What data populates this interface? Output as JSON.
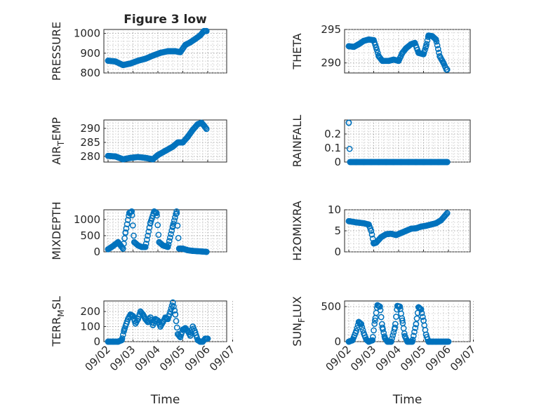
{
  "figure": {
    "title": "Figure 3 low",
    "marker_color": "#0072BD"
  },
  "chart_data": [
    {
      "type": "scatter",
      "title": "Figure 3 low",
      "ylabel": "PRESSURE",
      "xlim": [
        "09/02",
        "09/06"
      ],
      "ylim": [
        800,
        1020
      ],
      "yticks": [
        800,
        900,
        1000
      ],
      "xticks": [
        "09/02",
        "09/03",
        "09/04",
        "09/05",
        "09/06"
      ],
      "xticklabels_shown": false,
      "grid": true,
      "x_start": 0.0,
      "x_end": 3.95,
      "points": [
        [
          0,
          862
        ],
        [
          0.3,
          858
        ],
        [
          0.6,
          840
        ],
        [
          0.9,
          848
        ],
        [
          1.2,
          862
        ],
        [
          1.5,
          872
        ],
        [
          1.8,
          888
        ],
        [
          2.1,
          902
        ],
        [
          2.4,
          910
        ],
        [
          2.7,
          910
        ],
        [
          2.9,
          905
        ],
        [
          3.1,
          942
        ],
        [
          3.3,
          955
        ],
        [
          3.5,
          972
        ],
        [
          3.7,
          990
        ],
        [
          3.85,
          1012
        ],
        [
          3.95,
          1012
        ]
      ]
    },
    {
      "type": "scatter",
      "ylabel": "THETA",
      "xlim": [
        "09/02",
        "09/06"
      ],
      "ylim": [
        288.5,
        295
      ],
      "yticks": [
        290,
        295
      ],
      "xticks": [
        "09/02",
        "09/03",
        "09/04",
        "09/05",
        "09/06"
      ],
      "xticklabels_shown": false,
      "grid": true,
      "x_start": 0.0,
      "x_end": 3.95,
      "points": [
        [
          0,
          292.5
        ],
        [
          0.2,
          292.4
        ],
        [
          0.4,
          292.8
        ],
        [
          0.6,
          293.3
        ],
        [
          0.8,
          293.5
        ],
        [
          1.0,
          293.4
        ],
        [
          1.1,
          292.3
        ],
        [
          1.2,
          291.0
        ],
        [
          1.35,
          290.3
        ],
        [
          1.6,
          290.3
        ],
        [
          1.8,
          290.5
        ],
        [
          2.0,
          290.3
        ],
        [
          2.15,
          291.5
        ],
        [
          2.3,
          292.2
        ],
        [
          2.5,
          292.8
        ],
        [
          2.65,
          293.0
        ],
        [
          2.8,
          291.5
        ],
        [
          3.0,
          291.3
        ],
        [
          3.1,
          292.5
        ],
        [
          3.2,
          294.1
        ],
        [
          3.35,
          294.0
        ],
        [
          3.5,
          293.5
        ],
        [
          3.65,
          291.0
        ],
        [
          3.8,
          290.0
        ],
        [
          3.92,
          289.0
        ]
      ]
    },
    {
      "type": "scatter",
      "ylabel": "AIR_TEMP",
      "ylabel_parts": [
        "AIR",
        "T",
        "EMP"
      ],
      "xlim": [
        "09/02",
        "09/06"
      ],
      "ylim": [
        278,
        293
      ],
      "yticks": [
        280,
        285,
        290
      ],
      "xticks": [
        "09/02",
        "09/03",
        "09/04",
        "09/05",
        "09/06"
      ],
      "xticklabels_shown": false,
      "grid": true,
      "x_start": 0.0,
      "x_end": 3.95,
      "points": [
        [
          0,
          280.2
        ],
        [
          0.3,
          280.0
        ],
        [
          0.6,
          279.0
        ],
        [
          0.9,
          279.5
        ],
        [
          1.2,
          279.8
        ],
        [
          1.5,
          279.5
        ],
        [
          1.8,
          279.0
        ],
        [
          2.0,
          280.5
        ],
        [
          2.3,
          282.0
        ],
        [
          2.6,
          283.5
        ],
        [
          2.8,
          285.0
        ],
        [
          3.0,
          285.0
        ],
        [
          3.2,
          287.0
        ],
        [
          3.4,
          289.5
        ],
        [
          3.6,
          291.5
        ],
        [
          3.75,
          292.0
        ],
        [
          3.85,
          291.0
        ],
        [
          3.95,
          289.8
        ]
      ]
    },
    {
      "type": "scatter",
      "ylabel": "RAINFALL",
      "xlim": [
        "09/02",
        "09/06"
      ],
      "ylim": [
        0,
        0.3
      ],
      "yticks": [
        0,
        0.1,
        0.2
      ],
      "xticks": [
        "09/02",
        "09/03",
        "09/04",
        "09/05",
        "09/06"
      ],
      "xticklabels_shown": false,
      "grid": true,
      "x_start": 0.0,
      "x_end": 3.95,
      "points": [
        [
          0,
          0.28
        ],
        [
          0.05,
          0
        ],
        [
          0.3,
          0
        ],
        [
          0.6,
          0
        ],
        [
          0.9,
          0
        ],
        [
          1.2,
          0
        ],
        [
          1.5,
          0
        ],
        [
          1.8,
          0
        ],
        [
          2.1,
          0
        ],
        [
          2.4,
          0
        ],
        [
          2.7,
          0
        ],
        [
          3.0,
          0
        ],
        [
          3.3,
          0
        ],
        [
          3.6,
          0
        ],
        [
          3.95,
          0
        ]
      ]
    },
    {
      "type": "scatter",
      "ylabel": "MIXDEPTH",
      "xlim": [
        "09/02",
        "09/06"
      ],
      "ylim": [
        0,
        1300
      ],
      "yticks": [
        0,
        500,
        1000
      ],
      "xticks": [
        "09/02",
        "09/03",
        "09/04",
        "09/05",
        "09/06"
      ],
      "xticklabels_shown": false,
      "grid": true,
      "x_start": 0.0,
      "x_end": 3.95,
      "points": [
        [
          0,
          80
        ],
        [
          0.2,
          180
        ],
        [
          0.4,
          300
        ],
        [
          0.5,
          200
        ],
        [
          0.6,
          100
        ],
        [
          0.7,
          600
        ],
        [
          0.85,
          1200
        ],
        [
          0.95,
          1250
        ],
        [
          1.05,
          300
        ],
        [
          1.2,
          200
        ],
        [
          1.35,
          150
        ],
        [
          1.5,
          150
        ],
        [
          1.7,
          900
        ],
        [
          1.85,
          1250
        ],
        [
          1.95,
          1200
        ],
        [
          2.05,
          300
        ],
        [
          2.2,
          200
        ],
        [
          2.4,
          150
        ],
        [
          2.6,
          800
        ],
        [
          2.75,
          1250
        ],
        [
          2.85,
          100
        ],
        [
          3.0,
          100
        ],
        [
          3.2,
          50
        ],
        [
          3.4,
          30
        ],
        [
          3.6,
          20
        ],
        [
          3.8,
          10
        ],
        [
          3.95,
          0
        ]
      ]
    },
    {
      "type": "scatter",
      "ylabel": "H2OMIXRA",
      "xlim": [
        "09/02",
        "09/06"
      ],
      "ylim": [
        0,
        10
      ],
      "yticks": [
        0,
        5,
        10
      ],
      "xticks": [
        "09/02",
        "09/03",
        "09/04",
        "09/05",
        "09/06"
      ],
      "xticklabels_shown": false,
      "grid": true,
      "x_start": 0.0,
      "x_end": 3.95,
      "points": [
        [
          0,
          7.3
        ],
        [
          0.3,
          7.0
        ],
        [
          0.6,
          6.8
        ],
        [
          0.8,
          6.5
        ],
        [
          0.9,
          5.0
        ],
        [
          1.0,
          2.0
        ],
        [
          1.1,
          2.2
        ],
        [
          1.3,
          3.5
        ],
        [
          1.5,
          4.2
        ],
        [
          1.7,
          4.3
        ],
        [
          1.9,
          4.0
        ],
        [
          2.1,
          4.5
        ],
        [
          2.3,
          5.0
        ],
        [
          2.5,
          5.5
        ],
        [
          2.7,
          5.6
        ],
        [
          2.9,
          6.0
        ],
        [
          3.1,
          6.2
        ],
        [
          3.3,
          6.5
        ],
        [
          3.5,
          6.8
        ],
        [
          3.7,
          7.5
        ],
        [
          3.85,
          8.5
        ],
        [
          3.95,
          9.2
        ]
      ]
    },
    {
      "type": "scatter",
      "ylabel": "TERR_MSL",
      "ylabel_parts": [
        "TERR",
        "M",
        "SL"
      ],
      "xlim": [
        "09/02",
        "09/07"
      ],
      "ylim": [
        0,
        270
      ],
      "yticks": [
        0,
        100,
        200
      ],
      "xticks": [
        "09/02",
        "09/03",
        "09/04",
        "09/05",
        "09/06",
        "09/07"
      ],
      "xlabel": "Time",
      "grid": true,
      "x_start": 0.0,
      "x_end": 4.0,
      "points": [
        [
          0,
          0
        ],
        [
          0.2,
          0
        ],
        [
          0.4,
          0
        ],
        [
          0.55,
          10
        ],
        [
          0.65,
          80
        ],
        [
          0.8,
          150
        ],
        [
          0.9,
          180
        ],
        [
          1.0,
          170
        ],
        [
          1.1,
          120
        ],
        [
          1.2,
          150
        ],
        [
          1.3,
          200
        ],
        [
          1.4,
          180
        ],
        [
          1.5,
          150
        ],
        [
          1.6,
          130
        ],
        [
          1.7,
          160
        ],
        [
          1.8,
          110
        ],
        [
          1.9,
          150
        ],
        [
          2.0,
          140
        ],
        [
          2.1,
          100
        ],
        [
          2.2,
          130
        ],
        [
          2.3,
          160
        ],
        [
          2.4,
          150
        ],
        [
          2.5,
          200
        ],
        [
          2.6,
          260
        ],
        [
          2.7,
          180
        ],
        [
          2.8,
          50
        ],
        [
          2.9,
          30
        ],
        [
          3.0,
          80
        ],
        [
          3.1,
          90
        ],
        [
          3.2,
          70
        ],
        [
          3.3,
          40
        ],
        [
          3.4,
          100
        ],
        [
          3.5,
          60
        ],
        [
          3.6,
          10
        ],
        [
          3.7,
          0
        ],
        [
          3.8,
          0
        ],
        [
          3.9,
          20
        ]
      ]
    },
    {
      "type": "scatter",
      "ylabel": "SUN_FLUX",
      "ylabel_parts": [
        "SUN",
        "F",
        "LUX"
      ],
      "xlim": [
        "09/02",
        "09/07"
      ],
      "ylim": [
        0,
        580
      ],
      "yticks": [
        0,
        500
      ],
      "xticks": [
        "09/02",
        "09/03",
        "09/04",
        "09/05",
        "09/06",
        "09/07"
      ],
      "xlabel": "Time",
      "grid": true,
      "x_start": 0.0,
      "x_end": 4.0,
      "points": [
        [
          0,
          0
        ],
        [
          0.15,
          20
        ],
        [
          0.3,
          150
        ],
        [
          0.4,
          280
        ],
        [
          0.5,
          250
        ],
        [
          0.6,
          120
        ],
        [
          0.7,
          30
        ],
        [
          0.8,
          0
        ],
        [
          0.95,
          20
        ],
        [
          1.05,
          300
        ],
        [
          1.15,
          520
        ],
        [
          1.25,
          500
        ],
        [
          1.35,
          200
        ],
        [
          1.45,
          50
        ],
        [
          1.55,
          0
        ],
        [
          1.7,
          0
        ],
        [
          1.85,
          200
        ],
        [
          1.95,
          510
        ],
        [
          2.05,
          500
        ],
        [
          2.15,
          300
        ],
        [
          2.25,
          80
        ],
        [
          2.35,
          0
        ],
        [
          2.55,
          0
        ],
        [
          2.7,
          250
        ],
        [
          2.8,
          490
        ],
        [
          2.9,
          460
        ],
        [
          3.0,
          300
        ],
        [
          3.1,
          100
        ],
        [
          3.2,
          0
        ],
        [
          3.35,
          0
        ],
        [
          3.5,
          0
        ],
        [
          3.7,
          0
        ],
        [
          3.9,
          0
        ]
      ]
    }
  ]
}
